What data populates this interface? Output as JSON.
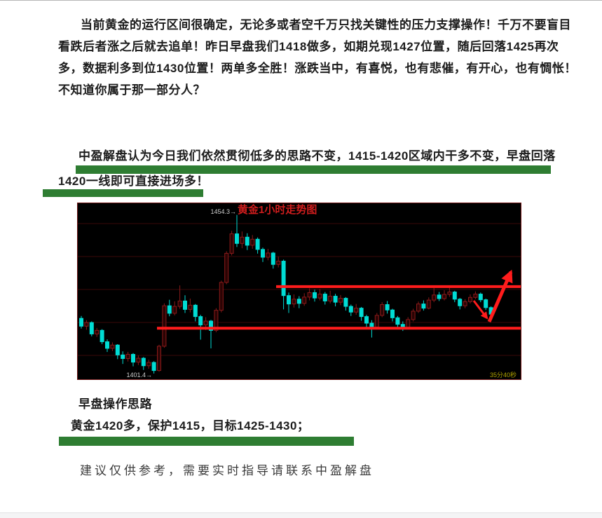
{
  "article": {
    "highlight_color": "#2e7d32",
    "intro": {
      "lines": [
        "当前黄金的运行区间很确定，无论多或者空千万只找关键性的压力支撑操作！千万不要盲目",
        "看跌后者涨之后就去追单！昨日早盘我们1418做多，如期兑现1427位置，随后回落1425再次",
        "多，数据利多到位1430位置！两单多全胜！涨跌当中，有喜悦，也有悲催，有开心，也有惆怅！",
        "不知道你属于那一部分人？"
      ]
    },
    "plan": {
      "line1": "中盈解盘认为今日我们依然贯彻低多的思路不变，1415-1420区域内干多不变，早盘回落",
      "line2": "1420一线即可直接进场多！"
    },
    "strategy": {
      "heading": "早盘操作思路",
      "detail": "黄金1420多，保护1415，目标1425-1430；"
    },
    "disclaimer": "建议仅供参考，需要实时指导请联系中盈解盘"
  },
  "chart_data": {
    "type": "candlestick",
    "title": "黄金1小时走势图",
    "high_label": "1454.3→",
    "low_label": "1401.4→",
    "timer_label": "35分40秒",
    "ylim": [
      1399.5,
      1458.2
    ],
    "resistance_line": 1430.4,
    "support_line": 1416.5,
    "high": 1454.3,
    "low": 1401.4,
    "colors": {
      "bg": "#000000",
      "grid": "#3a0808",
      "border": "#6b1111",
      "up": "#8b1a1a",
      "up_fill": "#2a0404",
      "down": "#00dcd4",
      "signal": "#ff1c1c",
      "title": "#cf1d1d",
      "label": "#cdcdcd",
      "timer": "#b0a400"
    },
    "candles": [
      [
        1419.8,
        1417.2,
        1420.6,
        1416.4
      ],
      [
        1417.2,
        1418.4,
        1419.2,
        1416.0
      ],
      [
        1418.4,
        1414.6,
        1418.8,
        1413.8
      ],
      [
        1414.6,
        1415.8,
        1416.6,
        1413.6
      ],
      [
        1415.8,
        1412.0,
        1416.2,
        1411.2
      ],
      [
        1412.0,
        1409.8,
        1412.8,
        1408.6
      ],
      [
        1409.8,
        1410.9,
        1411.8,
        1408.9
      ],
      [
        1410.9,
        1407.6,
        1411.2,
        1406.2
      ],
      [
        1407.6,
        1406.4,
        1408.8,
        1404.6
      ],
      [
        1406.4,
        1407.8,
        1408.6,
        1405.4
      ],
      [
        1407.8,
        1405.2,
        1408.2,
        1403.8
      ],
      [
        1405.2,
        1406.5,
        1407.4,
        1404.2
      ],
      [
        1406.5,
        1404.0,
        1406.9,
        1402.6
      ],
      [
        1404.0,
        1405.1,
        1406.0,
        1403.0
      ],
      [
        1405.1,
        1402.4,
        1405.5,
        1401.4
      ],
      [
        1402.4,
        1410.5,
        1411.0,
        1402.0
      ],
      [
        1410.5,
        1424.0,
        1424.8,
        1410.0
      ],
      [
        1424.0,
        1421.5,
        1426.0,
        1420.5
      ],
      [
        1421.5,
        1423.8,
        1425.5,
        1420.8
      ],
      [
        1423.8,
        1425.6,
        1430.8,
        1423.0
      ],
      [
        1425.6,
        1422.8,
        1427.5,
        1421.6
      ],
      [
        1422.8,
        1424.2,
        1426.4,
        1421.8
      ],
      [
        1424.2,
        1420.4,
        1424.6,
        1418.8
      ],
      [
        1420.4,
        1417.6,
        1421.0,
        1412.7
      ],
      [
        1417.6,
        1418.9,
        1420.2,
        1415.9
      ],
      [
        1418.9,
        1415.8,
        1419.3,
        1409.8
      ],
      [
        1415.8,
        1422.5,
        1423.2,
        1415.2
      ],
      [
        1422.5,
        1431.8,
        1432.4,
        1421.8
      ],
      [
        1431.8,
        1441.5,
        1442.2,
        1431.2
      ],
      [
        1441.5,
        1448.0,
        1449.0,
        1440.8
      ],
      [
        1448.0,
        1444.8,
        1454.3,
        1443.6
      ],
      [
        1444.8,
        1446.9,
        1448.8,
        1443.2
      ],
      [
        1446.9,
        1444.2,
        1448.2,
        1442.6
      ],
      [
        1444.2,
        1446.2,
        1447.6,
        1443.0
      ],
      [
        1446.2,
        1442.8,
        1446.8,
        1441.4
      ],
      [
        1442.8,
        1440.2,
        1443.4,
        1438.6
      ],
      [
        1440.2,
        1441.6,
        1443.0,
        1439.2
      ],
      [
        1441.6,
        1437.8,
        1442.0,
        1436.4
      ],
      [
        1437.8,
        1438.9,
        1440.4,
        1436.8
      ],
      [
        1438.9,
        1427.4,
        1439.4,
        1422.8
      ],
      [
        1427.4,
        1424.6,
        1428.4,
        1421.6
      ],
      [
        1424.6,
        1426.2,
        1427.8,
        1423.4
      ],
      [
        1426.2,
        1424.8,
        1427.2,
        1423.2
      ],
      [
        1424.8,
        1426.9,
        1428.2,
        1424.0
      ],
      [
        1426.9,
        1428.4,
        1429.8,
        1425.8
      ],
      [
        1428.4,
        1426.6,
        1429.4,
        1425.4
      ],
      [
        1426.6,
        1427.9,
        1429.6,
        1425.8
      ],
      [
        1427.9,
        1425.6,
        1428.6,
        1424.4
      ],
      [
        1425.6,
        1427.2,
        1429.0,
        1424.8
      ],
      [
        1427.2,
        1425.2,
        1428.0,
        1423.8
      ],
      [
        1425.2,
        1426.5,
        1427.6,
        1424.2
      ],
      [
        1426.5,
        1423.8,
        1426.9,
        1422.4
      ],
      [
        1423.8,
        1421.9,
        1424.4,
        1420.6
      ],
      [
        1421.9,
        1423.2,
        1424.6,
        1421.0
      ],
      [
        1423.2,
        1420.4,
        1423.6,
        1419.0
      ],
      [
        1420.4,
        1418.2,
        1421.0,
        1416.6
      ],
      [
        1418.2,
        1416.9,
        1419.2,
        1413.4
      ],
      [
        1416.9,
        1420.8,
        1421.6,
        1416.3
      ],
      [
        1420.8,
        1424.4,
        1425.2,
        1420.2
      ],
      [
        1424.4,
        1422.6,
        1425.6,
        1421.4
      ],
      [
        1422.6,
        1420.0,
        1423.0,
        1418.8
      ],
      [
        1420.0,
        1417.8,
        1420.6,
        1416.2
      ],
      [
        1417.8,
        1416.6,
        1418.8,
        1415.6
      ],
      [
        1416.6,
        1419.4,
        1420.2,
        1416.1
      ],
      [
        1419.4,
        1422.2,
        1423.0,
        1418.8
      ],
      [
        1422.2,
        1424.6,
        1425.4,
        1421.6
      ],
      [
        1424.6,
        1423.2,
        1425.8,
        1422.4
      ],
      [
        1423.2,
        1425.9,
        1426.8,
        1422.8
      ],
      [
        1425.9,
        1427.6,
        1429.9,
        1425.2
      ],
      [
        1427.6,
        1426.4,
        1428.6,
        1425.6
      ],
      [
        1426.4,
        1427.8,
        1429.2,
        1425.8
      ],
      [
        1427.8,
        1428.6,
        1430.0,
        1427.0
      ],
      [
        1428.6,
        1426.2,
        1429.0,
        1425.2
      ],
      [
        1426.2,
        1424.0,
        1426.6,
        1422.8
      ],
      [
        1424.0,
        1425.4,
        1426.2,
        1423.2
      ],
      [
        1425.4,
        1426.8,
        1427.8,
        1424.8
      ],
      [
        1426.8,
        1427.9,
        1428.8,
        1426.2
      ],
      [
        1427.9,
        1426.0,
        1428.4,
        1425.2
      ],
      [
        1426.0,
        1423.4,
        1426.4,
        1422.6
      ],
      [
        1423.4,
        1421.2,
        1423.8,
        1420.2
      ]
    ]
  }
}
